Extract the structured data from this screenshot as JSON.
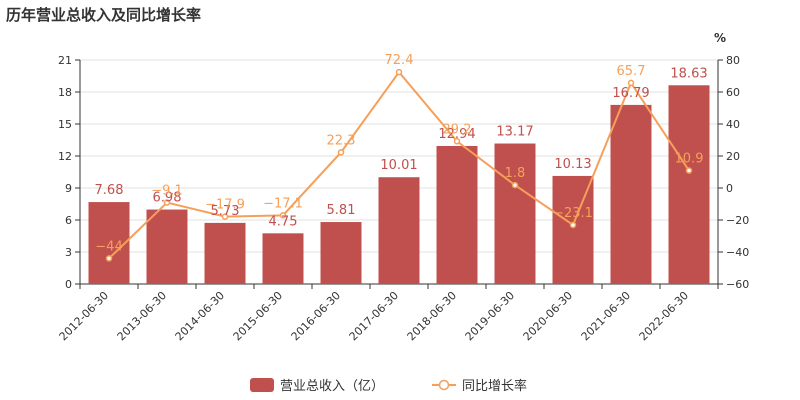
{
  "title": "历年营业总收入及同比增长率",
  "chart_data": {
    "type": "bar",
    "title": "历年营业总收入及同比增长率",
    "categories": [
      "2012-06-30",
      "2013-06-30",
      "2014-06-30",
      "2015-06-30",
      "2016-06-30",
      "2017-06-30",
      "2018-06-30",
      "2019-06-30",
      "2020-06-30",
      "2021-06-30",
      "2022-06-30"
    ],
    "series": [
      {
        "name": "营业总收入（亿）",
        "type": "bar",
        "axis": "left",
        "color": "#c0504d",
        "values": [
          7.68,
          6.98,
          5.73,
          4.75,
          5.81,
          10.01,
          12.94,
          13.17,
          10.13,
          16.79,
          18.63
        ],
        "labels": [
          "7.68",
          "6.98",
          "5.73",
          "4.75",
          "5.81",
          "10.01",
          "12.94",
          "13.17",
          "10.13",
          "16.79",
          "18.63"
        ]
      },
      {
        "name": "同比增长率",
        "type": "line",
        "axis": "right",
        "color": "#f5a05a",
        "values": [
          -44,
          -9.1,
          -17.9,
          -17.1,
          22.3,
          72.4,
          29.2,
          1.8,
          -23.1,
          65.7,
          10.9
        ],
        "labels": [
          "-44",
          "-9.1",
          "-17.9",
          "-17.1",
          "22.3",
          "72.4",
          "29.2",
          "1.8",
          "-23.1",
          "65.7",
          "10.9"
        ]
      }
    ],
    "y_left": {
      "min": 0,
      "max": 21,
      "ticks": [
        "0",
        "3",
        "6",
        "9",
        "12",
        "15",
        "18",
        "21"
      ]
    },
    "y_right": {
      "min": -60,
      "max": 80,
      "ticks": [
        "-60",
        "-40",
        "-20",
        "0",
        "20",
        "40",
        "60",
        "80"
      ],
      "unit": "%"
    },
    "grid": "horizontal",
    "legend_position": "bottom"
  }
}
